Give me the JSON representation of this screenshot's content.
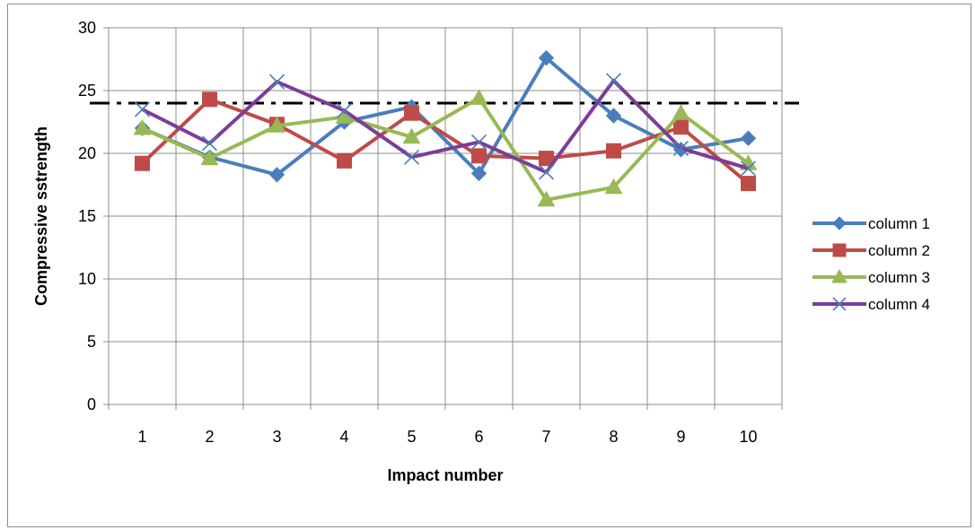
{
  "chart_data": {
    "type": "line",
    "title": "",
    "xlabel": "Impact number",
    "ylabel": "Compressive sstrength",
    "categories": [
      "1",
      "2",
      "3",
      "4",
      "5",
      "6",
      "7",
      "8",
      "9",
      "10"
    ],
    "ylim": [
      0,
      30
    ],
    "yticks": [
      0,
      5,
      10,
      15,
      20,
      25,
      30
    ],
    "grid": true,
    "legend_position": "right",
    "reference_line": {
      "value": 24,
      "style": "dash-dot",
      "color": "#000000"
    },
    "series": [
      {
        "name": "column 1",
        "color": "#4a7ebb",
        "marker": "diamond",
        "values": [
          22.0,
          19.7,
          18.3,
          22.5,
          23.7,
          18.4,
          27.6,
          23.0,
          20.3,
          21.2
        ]
      },
      {
        "name": "column 2",
        "color": "#be4b48",
        "marker": "square",
        "values": [
          19.2,
          24.3,
          22.3,
          19.4,
          23.2,
          19.8,
          19.6,
          20.2,
          22.1,
          17.6
        ]
      },
      {
        "name": "column 3",
        "color": "#98b954",
        "marker": "triangle",
        "values": [
          22.0,
          19.6,
          22.2,
          22.9,
          21.3,
          24.4,
          16.3,
          17.3,
          23.2,
          19.2
        ]
      },
      {
        "name": "column 4",
        "color": "#7d3c98",
        "marker": "x",
        "values": [
          23.5,
          20.8,
          25.7,
          23.4,
          19.7,
          20.9,
          18.5,
          25.8,
          20.4,
          18.8
        ]
      }
    ]
  }
}
